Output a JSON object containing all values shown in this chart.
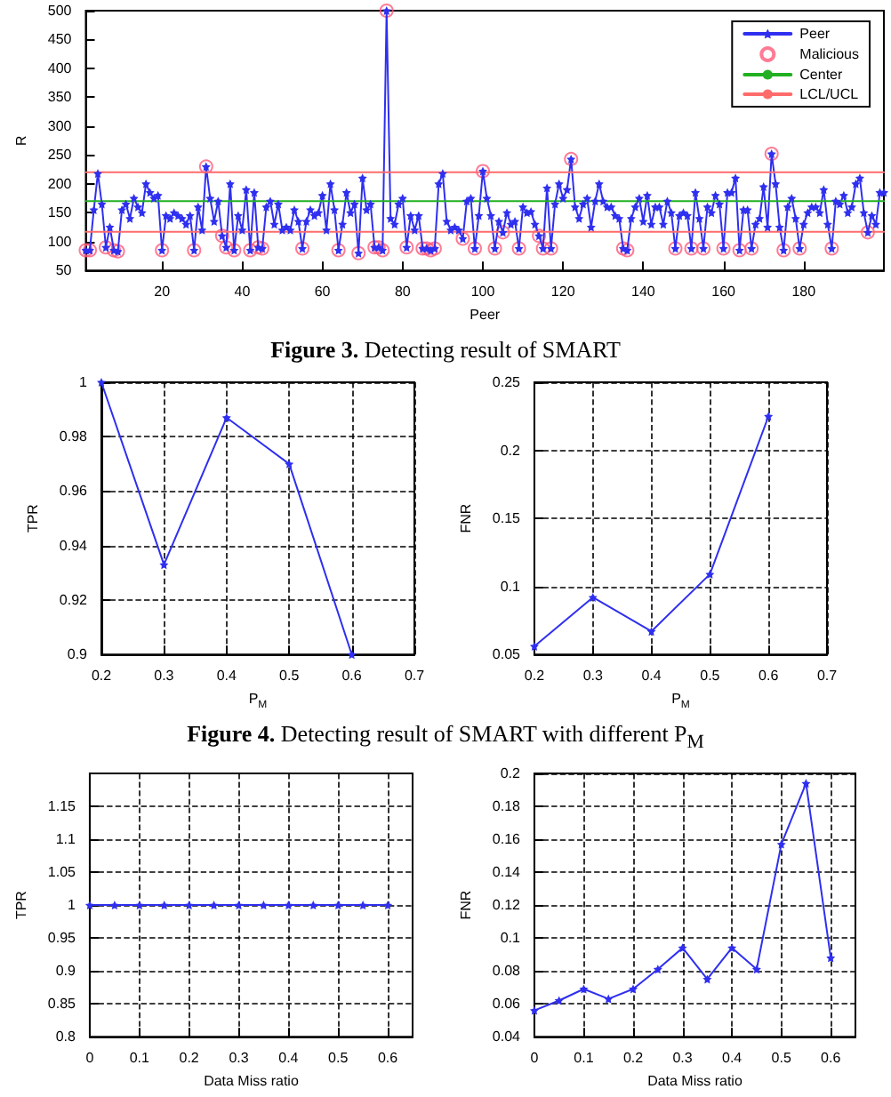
{
  "chart_data": [
    {
      "type": "line",
      "xlabel": "Peer",
      "ylabel": "R",
      "xlim": [
        1,
        200
      ],
      "xticks": [
        20,
        40,
        60,
        80,
        100,
        120,
        140,
        160,
        180
      ],
      "ylim": [
        50,
        500
      ],
      "yticks": [
        50,
        100,
        150,
        200,
        250,
        300,
        350,
        400,
        450,
        500
      ],
      "grid": false,
      "legend": "top right",
      "annotations": [
        "Figure 3. Detecting result of SMART"
      ],
      "series": [
        {
          "name": "Peer",
          "color": "#2f2ff0",
          "marker": "star",
          "line_style": "solid",
          "x": [
            1,
            2,
            3,
            4,
            5,
            6,
            7,
            8,
            9,
            10,
            11,
            12,
            13,
            14,
            15,
            16,
            17,
            18,
            19,
            20,
            21,
            22,
            23,
            24,
            25,
            26,
            27,
            28,
            29,
            30,
            31,
            32,
            33,
            34,
            35,
            36,
            37,
            38,
            39,
            40,
            41,
            42,
            43,
            44,
            45,
            46,
            47,
            48,
            49,
            50,
            51,
            52,
            53,
            54,
            55,
            56,
            57,
            58,
            59,
            60,
            61,
            62,
            63,
            64,
            65,
            66,
            67,
            68,
            69,
            70,
            71,
            72,
            73,
            74,
            75,
            76,
            77,
            78,
            79,
            80,
            81,
            82,
            83,
            84,
            85,
            86,
            87,
            88,
            89,
            90,
            91,
            92,
            93,
            94,
            95,
            96,
            97,
            98,
            99,
            100,
            101,
            102,
            103,
            104,
            105,
            106,
            107,
            108,
            109,
            110,
            111,
            112,
            113,
            114,
            115,
            116,
            117,
            118,
            119,
            120,
            121,
            122,
            123,
            124,
            125,
            126,
            127,
            128,
            129,
            130,
            131,
            132,
            133,
            134,
            135,
            136,
            137,
            138,
            139,
            140,
            141,
            142,
            143,
            144,
            145,
            146,
            147,
            148,
            149,
            150,
            151,
            152,
            153,
            154,
            155,
            156,
            157,
            158,
            159,
            160,
            161,
            162,
            163,
            164,
            165,
            166,
            167,
            168,
            169,
            170,
            171,
            172,
            173,
            174,
            175,
            176,
            177,
            178,
            179,
            180,
            181,
            182,
            183,
            184,
            185,
            186,
            187,
            188,
            189,
            190,
            191,
            192,
            193,
            194,
            195,
            196,
            197,
            198,
            199,
            200
          ],
          "values": [
            85,
            85,
            155,
            218,
            165,
            90,
            125,
            85,
            83,
            155,
            165,
            140,
            175,
            160,
            150,
            200,
            185,
            175,
            180,
            85,
            145,
            140,
            150,
            145,
            140,
            130,
            145,
            85,
            160,
            120,
            230,
            175,
            135,
            170,
            110,
            90,
            200,
            85,
            145,
            120,
            190,
            85,
            185,
            90,
            88,
            160,
            170,
            130,
            165,
            120,
            125,
            120,
            155,
            135,
            88,
            135,
            155,
            145,
            150,
            180,
            120,
            200,
            155,
            85,
            130,
            185,
            150,
            165,
            80,
            210,
            155,
            165,
            90,
            90,
            85,
            500,
            140,
            130,
            165,
            175,
            90,
            145,
            120,
            145,
            88,
            88,
            85,
            88,
            200,
            218,
            135,
            120,
            125,
            120,
            105,
            170,
            175,
            88,
            145,
            222,
            175,
            145,
            88,
            135,
            116,
            150,
            130,
            135,
            88,
            160,
            150,
            152,
            130,
            110,
            88,
            193,
            88,
            165,
            200,
            175,
            190,
            243,
            160,
            140,
            165,
            175,
            125,
            170,
            200,
            170,
            160,
            160,
            145,
            140,
            88,
            85,
            140,
            160,
            175,
            135,
            180,
            130,
            160,
            160,
            130,
            170,
            150,
            88,
            145,
            150,
            145,
            88,
            185,
            140,
            88,
            160,
            150,
            180,
            165,
            88,
            185,
            185,
            210,
            85,
            155,
            155,
            88,
            130,
            140,
            195,
            125,
            252,
            200,
            125,
            85,
            160,
            175,
            140,
            88,
            130,
            150,
            160,
            160,
            150,
            190,
            130,
            88,
            170,
            165,
            180,
            150,
            160,
            200,
            210,
            150,
            116,
            145,
            130,
            185,
            185
          ]
        },
        {
          "name": "Malicious",
          "type": "scatter",
          "color": "#ff5a7a",
          "marker": "circle",
          "x": [
            1,
            2,
            6,
            8,
            9,
            20,
            28,
            31,
            35,
            36,
            38,
            42,
            44,
            45,
            55,
            64,
            69,
            73,
            74,
            75,
            76,
            81,
            85,
            86,
            87,
            88,
            95,
            98,
            100,
            103,
            105,
            109,
            114,
            115,
            117,
            122,
            135,
            136,
            148,
            152,
            155,
            160,
            164,
            167,
            172,
            175,
            179,
            187,
            196
          ],
          "values": [
            85,
            85,
            90,
            85,
            83,
            85,
            85,
            230,
            110,
            90,
            85,
            85,
            90,
            88,
            88,
            85,
            80,
            90,
            90,
            85,
            500,
            90,
            88,
            88,
            85,
            88,
            105,
            88,
            222,
            88,
            116,
            88,
            110,
            88,
            88,
            243,
            88,
            85,
            88,
            88,
            88,
            88,
            85,
            88,
            252,
            85,
            88,
            88,
            116
          ]
        },
        {
          "name": "Center",
          "color": "#22b022",
          "marker": "none",
          "line_style": "solid",
          "x": [
            1,
            200
          ],
          "values": [
            170,
            170
          ]
        },
        {
          "name": "LCL/UCL",
          "color": "#ff6b6b",
          "marker": "none",
          "line_style": "solid",
          "x": [
            1,
            200
          ],
          "values": [
            220,
            220
          ]
        },
        {
          "color": "#ff6b6b",
          "marker": "none",
          "line_style": "solid",
          "x": [
            1,
            200
          ],
          "values": [
            117,
            117
          ]
        }
      ]
    },
    {
      "type": "line",
      "xlabel": "P$_{M}$",
      "ylabel": "TPR",
      "xlim": [
        0.2,
        0.7
      ],
      "xticks": [
        0.2,
        0.3,
        0.4,
        0.5,
        0.6,
        0.7
      ],
      "ylim": [
        0.9,
        1
      ],
      "yticks": [
        0.9,
        0.92,
        0.94,
        0.96,
        0.98,
        1
      ],
      "grid": true,
      "marker": "star",
      "line_style": "solid",
      "annotations": [
        "Figure 4. Detecting result of SMART with different P$_{M}$"
      ],
      "series": [
        {
          "color": "#2f2ff0",
          "x": [
            0.2,
            0.3,
            0.4,
            0.5,
            0.6
          ],
          "values": [
            1,
            0.933,
            0.987,
            0.97,
            0.9
          ]
        }
      ]
    },
    {
      "type": "line",
      "xlabel": "P$_{M}$",
      "ylabel": "FNR",
      "xlim": [
        0.2,
        0.7
      ],
      "xticks": [
        0.2,
        0.3,
        0.4,
        0.5,
        0.6,
        0.7
      ],
      "ylim": [
        0.05,
        0.25
      ],
      "yticks": [
        0.05,
        0.1,
        0.15,
        0.2,
        0.25
      ],
      "grid": true,
      "marker": "star",
      "line_style": "solid",
      "series": [
        {
          "color": "#2f2ff0",
          "x": [
            0.2,
            0.3,
            0.4,
            0.5,
            0.6
          ],
          "values": [
            0.056,
            0.092,
            0.067,
            0.109,
            0.225
          ]
        }
      ]
    },
    {
      "type": "line",
      "xlabel": "Data Miss ratio",
      "ylabel": "TPR",
      "xlim": [
        0,
        0.65
      ],
      "xticks": [
        0,
        0.1,
        0.2,
        0.3,
        0.4,
        0.5,
        0.6
      ],
      "ylim": [
        0.8,
        1.2
      ],
      "yticks": [
        0.8,
        0.85,
        0.9,
        0.95,
        1,
        1.05,
        1.1,
        1.15
      ],
      "grid": true,
      "marker": "star",
      "line_style": "solid",
      "series": [
        {
          "color": "#2f2ff0",
          "x": [
            0,
            0.05,
            0.1,
            0.15,
            0.2,
            0.25,
            0.3,
            0.35,
            0.4,
            0.45,
            0.5,
            0.55,
            0.6
          ],
          "values": [
            1,
            1,
            1,
            1,
            1,
            1,
            1,
            1,
            1,
            1,
            1,
            1,
            1
          ]
        }
      ]
    },
    {
      "type": "line",
      "xlabel": "Data Miss ratio",
      "ylabel": "FNR",
      "xlim": [
        0,
        0.65
      ],
      "xticks": [
        0,
        0.1,
        0.2,
        0.3,
        0.4,
        0.5,
        0.6
      ],
      "ylim": [
        0.04,
        0.2
      ],
      "yticks": [
        0.04,
        0.06,
        0.08,
        0.1,
        0.12,
        0.14,
        0.16,
        0.18,
        0.2
      ],
      "grid": true,
      "marker": "star",
      "line_style": "solid",
      "series": [
        {
          "color": "#2f2ff0",
          "x": [
            0,
            0.05,
            0.1,
            0.15,
            0.2,
            0.25,
            0.3,
            0.35,
            0.4,
            0.45,
            0.5,
            0.55,
            0.6
          ],
          "values": [
            0.056,
            0.062,
            0.069,
            0.063,
            0.069,
            0.081,
            0.094,
            0.075,
            0.094,
            0.081,
            0.157,
            0.194,
            0.088
          ]
        }
      ]
    }
  ]
}
